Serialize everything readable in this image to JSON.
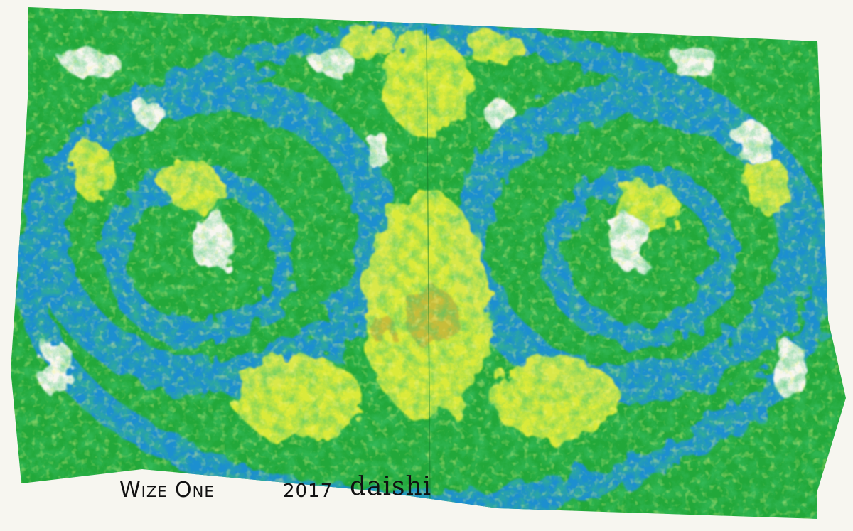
{
  "caption": {
    "title": "Wize One",
    "year": "2017",
    "artist": "daishi"
  },
  "palette": {
    "paper": "#f7f6f0",
    "blue": "#1f8fd0",
    "green": "#1aa33a",
    "dark_green": "#137a2a",
    "yellow": "#eef23a",
    "ochre": "#b89a3a"
  }
}
